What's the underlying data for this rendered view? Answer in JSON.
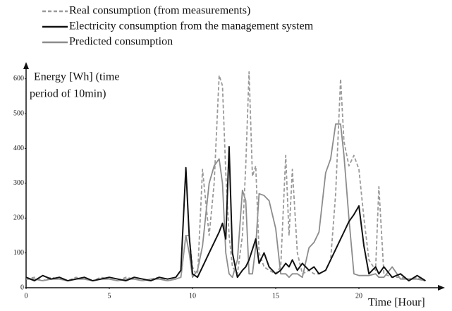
{
  "chart_data": {
    "type": "line",
    "x_label": "Time [Hour]",
    "y_label": [
      "Energy [Wh] (time",
      "period of 10min)"
    ],
    "x": [
      0,
      0.5,
      1,
      1.5,
      2,
      2.5,
      3,
      3.5,
      4,
      4.5,
      5,
      5.5,
      6,
      6.5,
      7,
      7.5,
      8,
      8.5,
      9,
      9.3,
      9.6,
      9.8,
      10,
      10.3,
      10.6,
      11,
      11.3,
      11.6,
      11.8,
      12,
      12.2,
      12.4,
      12.7,
      13,
      13.2,
      13.4,
      13.6,
      13.8,
      14,
      14.3,
      14.6,
      15,
      15.3,
      15.6,
      15.8,
      16,
      16.3,
      16.6,
      17,
      17.3,
      17.6,
      18,
      18.3,
      18.6,
      18.9,
      19.1,
      19.4,
      19.7,
      20,
      20.3,
      20.6,
      21,
      21.2,
      21.5,
      22,
      22.5,
      23,
      23.5,
      24
    ],
    "series": [
      {
        "name": "Real consumption (from measurements)",
        "color": "#9a9a9a",
        "dash": "dashed",
        "values": [
          25,
          30,
          20,
          30,
          25,
          20,
          30,
          25,
          20,
          30,
          25,
          20,
          30,
          25,
          20,
          25,
          30,
          20,
          25,
          30,
          150,
          150,
          60,
          30,
          340,
          150,
          300,
          610,
          580,
          330,
          150,
          60,
          40,
          150,
          350,
          620,
          320,
          350,
          100,
          60,
          50,
          40,
          60,
          380,
          150,
          340,
          100,
          40,
          50,
          40,
          40,
          50,
          80,
          270,
          600,
          420,
          350,
          380,
          340,
          200,
          80,
          50,
          290,
          40,
          30,
          30,
          25,
          30,
          20
        ]
      },
      {
        "name": "Electricity consumption from the management system",
        "color": "#111111",
        "dash": "solid",
        "values": [
          30,
          20,
          35,
          25,
          30,
          20,
          25,
          30,
          20,
          25,
          30,
          25,
          20,
          30,
          25,
          20,
          30,
          25,
          30,
          50,
          345,
          150,
          40,
          30,
          60,
          100,
          130,
          160,
          185,
          140,
          405,
          100,
          30,
          50,
          60,
          80,
          110,
          140,
          70,
          100,
          60,
          40,
          50,
          70,
          60,
          80,
          50,
          70,
          50,
          60,
          40,
          50,
          80,
          110,
          140,
          160,
          190,
          210,
          235,
          120,
          40,
          60,
          40,
          60,
          30,
          40,
          20,
          35,
          20
        ]
      },
      {
        "name": "Predicted consumption",
        "color": "#8c8c8c",
        "dash": "solid",
        "values": [
          25,
          25,
          20,
          25,
          25,
          20,
          25,
          25,
          20,
          25,
          25,
          20,
          25,
          25,
          20,
          25,
          25,
          20,
          25,
          30,
          150,
          100,
          30,
          50,
          120,
          300,
          350,
          370,
          300,
          100,
          40,
          30,
          80,
          280,
          250,
          40,
          40,
          120,
          270,
          265,
          250,
          170,
          40,
          40,
          30,
          40,
          40,
          30,
          115,
          130,
          160,
          330,
          370,
          470,
          470,
          380,
          200,
          40,
          35,
          35,
          35,
          40,
          30,
          30,
          60,
          25,
          25,
          25,
          20
        ]
      }
    ],
    "xlim": [
      0,
      25
    ],
    "xticks": [
      0,
      5,
      10,
      15,
      20
    ],
    "ylim": [
      0,
      640
    ],
    "yticks": [
      0,
      100,
      200,
      300,
      400,
      500,
      600
    ],
    "grid": false,
    "legend": "top-left"
  }
}
